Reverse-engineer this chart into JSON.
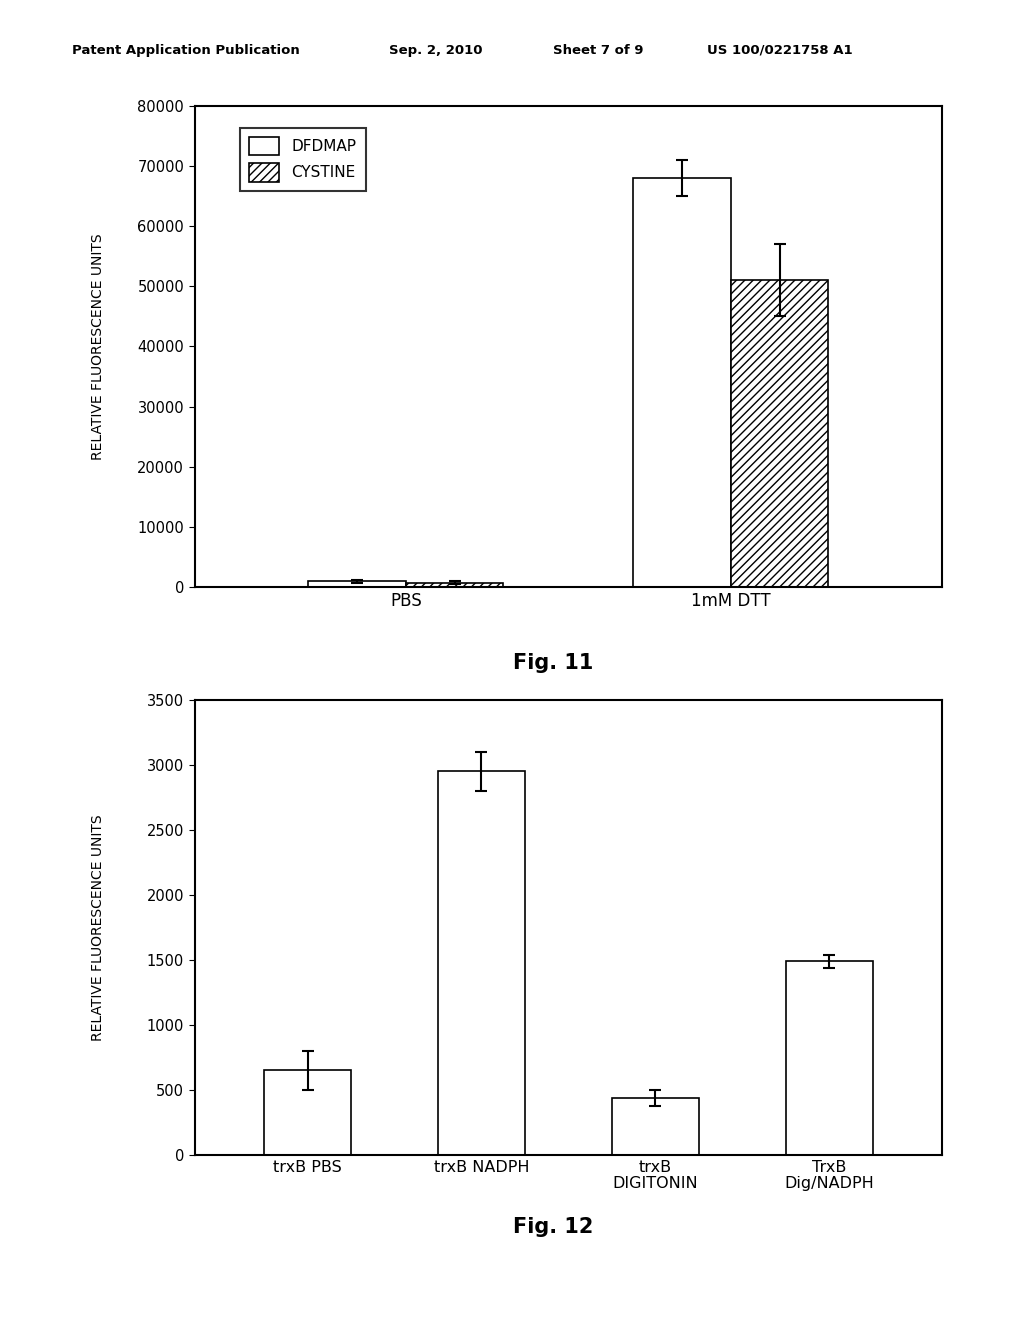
{
  "fig11": {
    "groups": [
      "PBS",
      "1mM DTT"
    ],
    "series": [
      "DFDMAP",
      "CYSTINE"
    ],
    "values": [
      [
        1000,
        800
      ],
      [
        68000,
        51000
      ]
    ],
    "errors": [
      [
        300,
        200
      ],
      [
        3000,
        6000
      ]
    ],
    "ylim": [
      0,
      80000
    ],
    "yticks": [
      0,
      10000,
      20000,
      30000,
      40000,
      50000,
      60000,
      70000,
      80000
    ],
    "ylabel": "RELATIVE FLUORESCENCE UNITS",
    "fig_label": "Fig. 11",
    "bar_width": 0.3,
    "colors": [
      "white",
      "white"
    ],
    "hatch": [
      null,
      "////"
    ],
    "legend_labels": [
      "DFDMAP",
      "CYSTINE"
    ]
  },
  "fig12": {
    "categories": [
      "trxB PBS",
      "trxB NADPH",
      "trxB\nDIGITONIN",
      "TrxB\nDig/NADPH"
    ],
    "values": [
      650,
      2950,
      440,
      1490
    ],
    "errors": [
      150,
      150,
      60,
      50
    ],
    "ylim": [
      0,
      3500
    ],
    "yticks": [
      0,
      500,
      1000,
      1500,
      2000,
      2500,
      3000,
      3500
    ],
    "ylabel": "RELATIVE FLUORESCENCE UNITS",
    "fig_label": "Fig. 12",
    "bar_width": 0.5,
    "color": "white"
  },
  "header": {
    "left": "Patent Application Publication",
    "mid1": "Sep. 2, 2010",
    "mid2": "Sheet 7 of 9",
    "right": "US 100/0221758 A1"
  },
  "bg_color": "white"
}
